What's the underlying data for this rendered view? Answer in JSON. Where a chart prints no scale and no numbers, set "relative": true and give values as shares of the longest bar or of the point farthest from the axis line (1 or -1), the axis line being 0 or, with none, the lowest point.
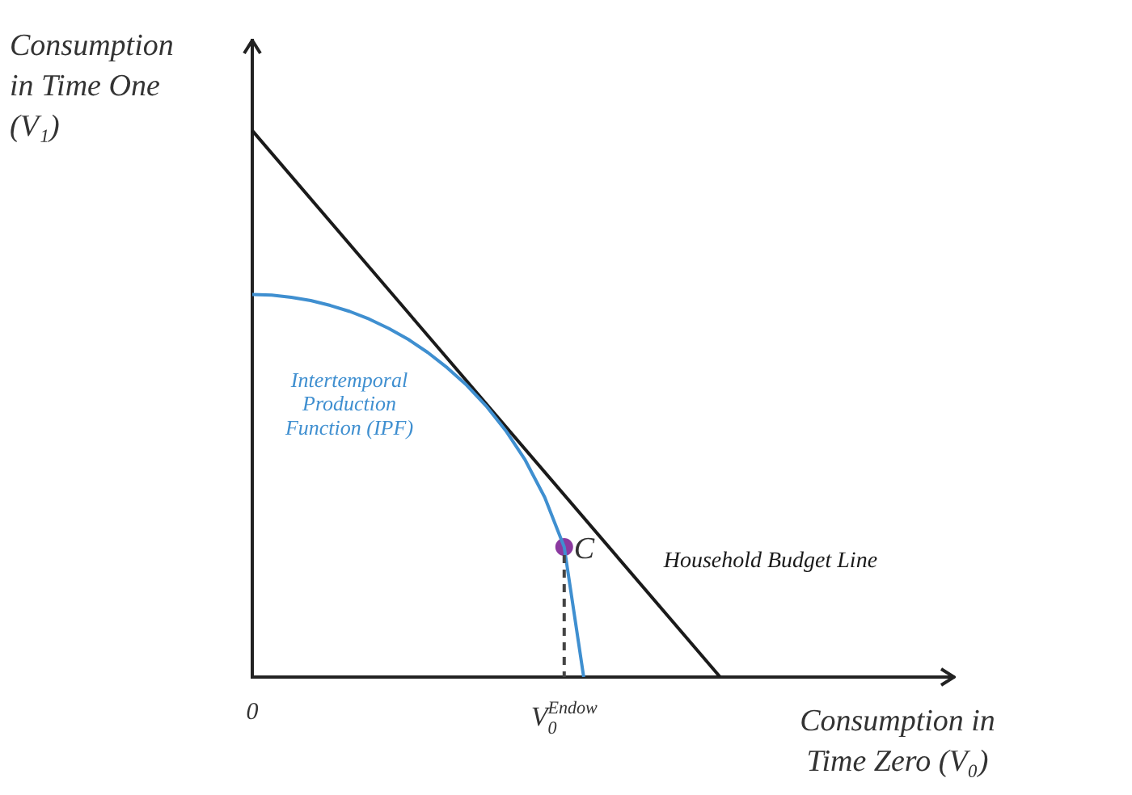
{
  "chart_data": {
    "type": "line",
    "relative": true,
    "xlabel": "Consumption in Time Zero (V₀)",
    "ylabel": "Consumption in Time One (V₁)",
    "categories": [
      "0",
      null,
      null,
      null,
      null,
      null,
      null,
      null,
      null,
      null,
      null,
      null,
      null,
      null,
      null,
      null,
      "V$_{0}$$^{Endow}$",
      null,
      null,
      null,
      null,
      null,
      null,
      null,
      null,
      null,
      null,
      null,
      null,
      null,
      null,
      null,
      null,
      null,
      null,
      null,
      null
    ],
    "series": [
      {
        "name": "Intertemporal Production Function (IPF)",
        "color": "#3f8fd0",
        "values": [
          0.7,
          0.699,
          0.695,
          0.689,
          0.68,
          0.669,
          0.655,
          0.638,
          0.618,
          0.594,
          0.566,
          0.534,
          0.496,
          0.451,
          0.397,
          0.329,
          0.238,
          0.0,
          null,
          null,
          null,
          null,
          null,
          null,
          null,
          null,
          null,
          null,
          null,
          null,
          null,
          null,
          null,
          null,
          null,
          null,
          null
        ]
      },
      {
        "name": "Household Budget Line",
        "color": "#1a1a1a",
        "values": [
          1.0,
          null,
          null,
          null,
          null,
          null,
          null,
          null,
          null,
          null,
          null,
          null,
          null,
          null,
          null,
          null,
          null,
          null,
          null,
          null,
          null,
          null,
          null,
          null,
          0.0,
          null,
          null,
          null,
          null,
          null,
          null,
          null,
          null,
          null,
          null,
          null,
          null
        ]
      },
      {
        "type": "scatter",
        "color": "#8b3aa0",
        "values": [
          null,
          null,
          null,
          null,
          null,
          null,
          null,
          null,
          null,
          null,
          null,
          null,
          null,
          null,
          null,
          null,
          0.238,
          null,
          null,
          null,
          null,
          null,
          null,
          null,
          null,
          null,
          null,
          null,
          null,
          null,
          null,
          null,
          null,
          null,
          null,
          null,
          null
        ]
      }
    ],
    "annotations": [
      {
        "text": "C",
        "x": "V$_{0}$$^{Endow}$",
        "y": 0.238
      }
    ],
    "grid": false,
    "legend": false
  }
}
